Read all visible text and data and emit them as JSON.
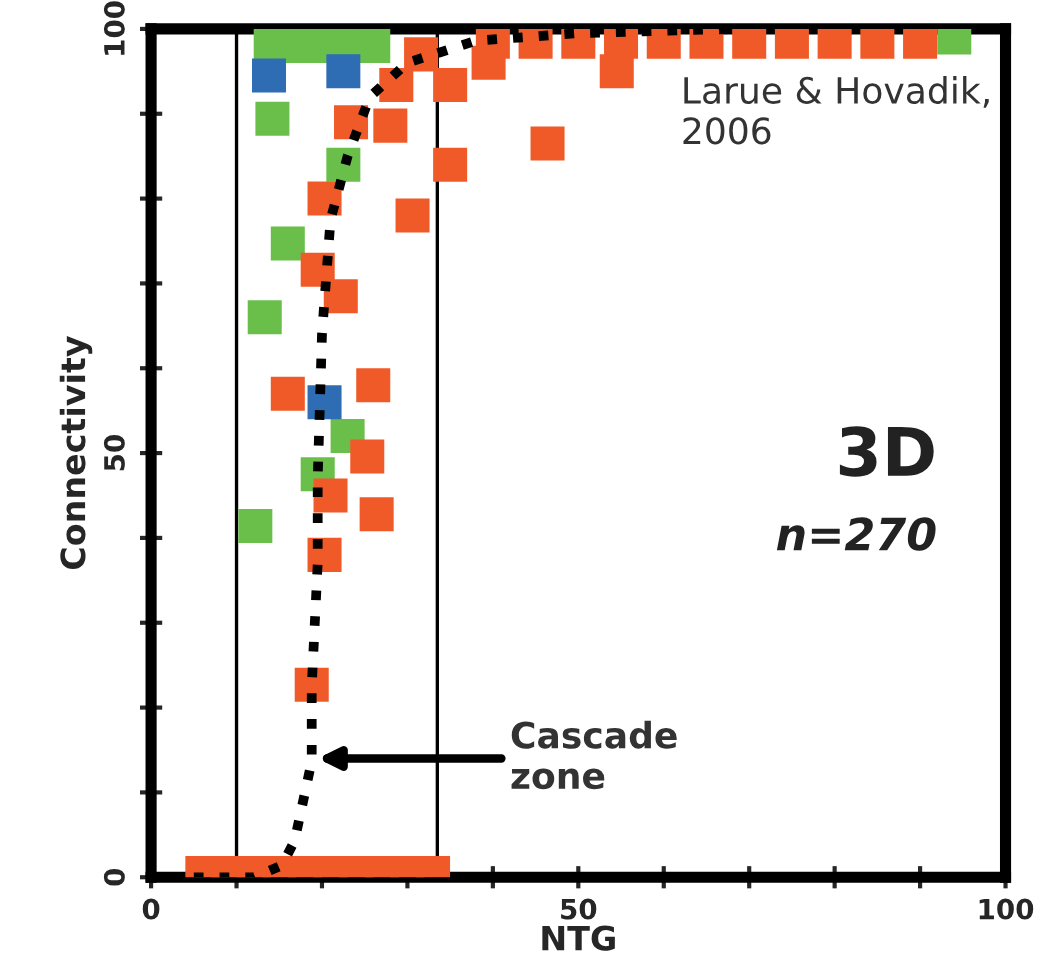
{
  "chart_data": {
    "type": "scatter",
    "xlabel": "NTG",
    "ylabel": "Connectivity",
    "xlim": [
      0,
      100
    ],
    "ylim": [
      0,
      100
    ],
    "xticks": [
      0,
      {
        "value": 10,
        "label": null
      },
      {
        "value": 20,
        "label": null
      },
      {
        "value": 30,
        "label": null
      },
      {
        "value": 40,
        "label": null
      },
      50,
      {
        "value": 60,
        "label": null
      },
      {
        "value": 70,
        "label": null
      },
      {
        "value": 80,
        "label": null
      },
      {
        "value": 90,
        "label": null
      },
      100
    ],
    "yticks": [
      0,
      {
        "value": 10,
        "label": null
      },
      {
        "value": 20,
        "label": null
      },
      {
        "value": 30,
        "label": null
      },
      {
        "value": 40,
        "label": null
      },
      50,
      {
        "value": 60,
        "label": null
      },
      {
        "value": 70,
        "label": null
      },
      {
        "value": 80,
        "label": null
      },
      {
        "value": 90,
        "label": null
      },
      100
    ],
    "grid": false,
    "legend": false,
    "marker": "square",
    "series": [
      {
        "color": "#6abf4b",
        "x": [
          14,
          17,
          20,
          23,
          26,
          14.2,
          22.5,
          16,
          13.3,
          23,
          12.2,
          19.5,
          94
        ],
        "values": [
          98,
          98,
          98,
          98,
          98,
          89.4,
          84,
          74.7,
          66,
          52,
          41.4,
          47.5,
          99
        ]
      },
      {
        "color": "#f05a28",
        "x": [
          28,
          28.7,
          23.4,
          35,
          20.3,
          30.6,
          19.5,
          22.2,
          16,
          26,
          25.3,
          21,
          26.4,
          20.3,
          18.8,
          31.6,
          35,
          46.4,
          39.5,
          54.5,
          40,
          45,
          50,
          55,
          60,
          65,
          70,
          75,
          80,
          85,
          90,
          6,
          9,
          12,
          15,
          18,
          21,
          24,
          27,
          30,
          33
        ],
        "values": [
          88.6,
          93.4,
          89,
          84,
          80,
          78,
          71.6,
          68.5,
          57,
          58,
          49.6,
          45,
          42.8,
          38,
          22.7,
          97,
          93.4,
          86.5,
          96,
          95,
          98.5,
          98.5,
          98.5,
          98.5,
          98.5,
          98.5,
          98.5,
          98.5,
          98.5,
          98.5,
          98.5,
          0.5,
          0.5,
          0.5,
          0.5,
          0.5,
          0.5,
          0.5,
          0.5,
          0.5,
          0.5
        ]
      },
      {
        "color": "#2e6db4",
        "x": [
          13.8,
          20.3,
          22.5
        ],
        "values": [
          94.5,
          56,
          95
        ]
      },
      {
        "type": "line",
        "color": "#000000",
        "line_style": "dotted",
        "marker": "none",
        "x": [
          5,
          12,
          15.3,
          16.8,
          18.8,
          18.8,
          19.5,
          19.5,
          20,
          21,
          23,
          25.6,
          30,
          38,
          50,
          68
        ],
        "values": [
          0,
          0,
          1.4,
          4.3,
          13.7,
          22.5,
          37,
          47,
          64,
          77.5,
          85,
          92,
          96,
          98.6,
          99.5,
          100
        ]
      }
    ],
    "ref_lines": [
      {
        "axis": "x",
        "value": 10,
        "color": "#000000"
      },
      {
        "axis": "x",
        "value": 33.5,
        "color": "#000000"
      }
    ],
    "annotations": [
      "Cascade\nzone",
      "Larue & Hovadik,\n2006",
      "3D",
      "n=270"
    ]
  }
}
